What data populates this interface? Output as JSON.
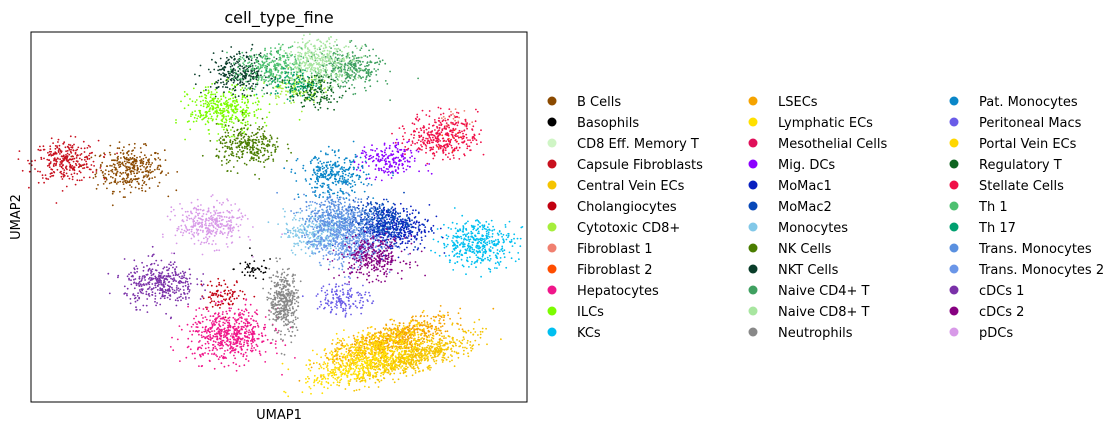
{
  "chart_data": {
    "type": "scatter",
    "title": "cell_type_fine",
    "xlabel": "UMAP1",
    "ylabel": "UMAP2",
    "grid": false,
    "ticks": false,
    "legend_position": "right",
    "legend_columns": 3,
    "series": [
      {
        "name": "B Cells",
        "color": "#8B4A00"
      },
      {
        "name": "Basophils",
        "color": "#000000"
      },
      {
        "name": "CD8 Eff. Memory T",
        "color": "#CFF5C5"
      },
      {
        "name": "Capsule Fibroblasts",
        "color": "#C8101E"
      },
      {
        "name": "Central Vein ECs",
        "color": "#F5C400"
      },
      {
        "name": "Cholangiocytes",
        "color": "#C10010"
      },
      {
        "name": "Cytotoxic CD8+",
        "color": "#A6EE3B"
      },
      {
        "name": "Fibroblast 1",
        "color": "#F08070"
      },
      {
        "name": "Fibroblast 2",
        "color": "#FF4D00"
      },
      {
        "name": "Hepatocytes",
        "color": "#F0168A"
      },
      {
        "name": "ILCs",
        "color": "#7CFC00"
      },
      {
        "name": "KCs",
        "color": "#00BFF0"
      },
      {
        "name": "LSECs",
        "color": "#F5A300"
      },
      {
        "name": "Lymphatic ECs",
        "color": "#FFE000"
      },
      {
        "name": "Mesothelial Cells",
        "color": "#E0105A"
      },
      {
        "name": "Mig. DCs",
        "color": "#8B00FF"
      },
      {
        "name": "MoMac1",
        "color": "#0A20C0"
      },
      {
        "name": "MoMac2",
        "color": "#0848B8"
      },
      {
        "name": "Monocytes",
        "color": "#82C8E8"
      },
      {
        "name": "NK Cells",
        "color": "#4A7D00"
      },
      {
        "name": "NKT Cells",
        "color": "#0A3D2A"
      },
      {
        "name": "Naive CD4+ T",
        "color": "#3FA060"
      },
      {
        "name": "Naive CD8+ T",
        "color": "#A8E6A0"
      },
      {
        "name": "Neutrophils",
        "color": "#888888"
      },
      {
        "name": "Pat. Monocytes",
        "color": "#0A86C8"
      },
      {
        "name": "Peritoneal Macs",
        "color": "#6A5CE8"
      },
      {
        "name": "Portal Vein ECs",
        "color": "#FFD700"
      },
      {
        "name": "Regulatory T",
        "color": "#0E6420"
      },
      {
        "name": "Stellate Cells",
        "color": "#F01048"
      },
      {
        "name": "Th 1",
        "color": "#4DC070"
      },
      {
        "name": "Th 17",
        "color": "#00A070"
      },
      {
        "name": "Trans. Monocytes",
        "color": "#5A90E0"
      },
      {
        "name": "Trans. Monocytes 2",
        "color": "#6A96E8"
      },
      {
        "name": "cDCs 1",
        "color": "#7A30A8"
      },
      {
        "name": "cDCs 2",
        "color": "#860080"
      },
      {
        "name": "pDCs",
        "color": "#D89AE8"
      }
    ],
    "clusters": [
      {
        "label": "B Cells",
        "x": 2.0,
        "y": 6.3,
        "n": 340
      },
      {
        "label": "Basophils",
        "x": 4.5,
        "y": 3.6,
        "n": 45
      },
      {
        "label": "Capsule Fibroblasts",
        "x": 0.7,
        "y": 6.5,
        "n": 300
      },
      {
        "label": "Central Vein ECs",
        "x": 7.7,
        "y": 1.2,
        "n": 700
      },
      {
        "label": "Cholangiocytes",
        "x": 3.9,
        "y": 2.9,
        "n": 90
      },
      {
        "label": "Cytotoxic CD8+",
        "x": 5.3,
        "y": 8.5,
        "n": 120
      },
      {
        "label": "Fibroblast 1",
        "x": 8.6,
        "y": 7.6,
        "n": 25
      },
      {
        "label": "Fibroblast 2",
        "x": 8.4,
        "y": 7.2,
        "n": 12
      },
      {
        "label": "Hepatocytes",
        "x": 4.0,
        "y": 1.8,
        "n": 600
      },
      {
        "label": "ILCs",
        "x": 3.9,
        "y": 7.9,
        "n": 380
      },
      {
        "label": "KCs",
        "x": 9.0,
        "y": 4.3,
        "n": 420
      },
      {
        "label": "LSECs",
        "x": 7.3,
        "y": 1.7,
        "n": 600
      },
      {
        "label": "Lymphatic ECs",
        "x": 6.7,
        "y": 1.0,
        "n": 400
      },
      {
        "label": "Mig. DCs",
        "x": 7.2,
        "y": 6.5,
        "n": 200
      },
      {
        "label": "MoMac1",
        "x": 7.3,
        "y": 4.7,
        "n": 420
      },
      {
        "label": "MoMac2",
        "x": 7.0,
        "y": 4.9,
        "n": 300
      },
      {
        "label": "Monocytes",
        "x": 5.8,
        "y": 4.6,
        "n": 350
      },
      {
        "label": "NK Cells",
        "x": 4.4,
        "y": 6.9,
        "n": 300
      },
      {
        "label": "NKT Cells",
        "x": 4.2,
        "y": 8.9,
        "n": 280
      },
      {
        "label": "Naive CD4+ T",
        "x": 6.4,
        "y": 9.0,
        "n": 300
      },
      {
        "label": "Naive CD8+ T",
        "x": 5.8,
        "y": 9.2,
        "n": 380
      },
      {
        "label": "Neutrophils",
        "x": 5.1,
        "y": 2.7,
        "n": 400
      },
      {
        "label": "Pat. Monocytes",
        "x": 6.1,
        "y": 6.1,
        "n": 320
      },
      {
        "label": "Peritoneal Macs",
        "x": 6.3,
        "y": 2.8,
        "n": 150
      },
      {
        "label": "Portal Vein ECs",
        "x": 6.8,
        "y": 1.5,
        "n": 350
      },
      {
        "label": "Regulatory T",
        "x": 5.7,
        "y": 8.4,
        "n": 140
      },
      {
        "label": "Stellate Cells",
        "x": 8.3,
        "y": 7.2,
        "n": 360
      },
      {
        "label": "Th 1",
        "x": 4.8,
        "y": 9.0,
        "n": 300
      },
      {
        "label": "Th 17",
        "x": 5.3,
        "y": 8.6,
        "n": 80
      },
      {
        "label": "Trans. Monocytes",
        "x": 6.2,
        "y": 5.0,
        "n": 420
      },
      {
        "label": "Trans. Monocytes 2",
        "x": 6.4,
        "y": 4.3,
        "n": 420
      },
      {
        "label": "cDCs 1",
        "x": 2.6,
        "y": 3.2,
        "n": 380
      },
      {
        "label": "cDCs 2",
        "x": 6.9,
        "y": 3.9,
        "n": 300
      },
      {
        "label": "pDCs",
        "x": 3.6,
        "y": 4.8,
        "n": 340
      }
    ]
  }
}
